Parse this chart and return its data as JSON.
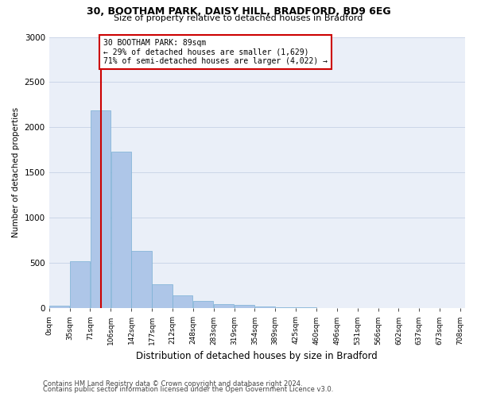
{
  "title1": "30, BOOTHAM PARK, DAISY HILL, BRADFORD, BD9 6EG",
  "title2": "Size of property relative to detached houses in Bradford",
  "xlabel": "Distribution of detached houses by size in Bradford",
  "ylabel": "Number of detached properties",
  "footer1": "Contains HM Land Registry data © Crown copyright and database right 2024.",
  "footer2": "Contains public sector information licensed under the Open Government Licence v3.0.",
  "property_label": "30 BOOTHAM PARK: 89sqm",
  "annotation_line1": "← 29% of detached houses are smaller (1,629)",
  "annotation_line2": "71% of semi-detached houses are larger (4,022) →",
  "bin_labels": [
    "0sqm",
    "35sqm",
    "71sqm",
    "106sqm",
    "142sqm",
    "177sqm",
    "212sqm",
    "248sqm",
    "283sqm",
    "319sqm",
    "354sqm",
    "389sqm",
    "425sqm",
    "460sqm",
    "496sqm",
    "531sqm",
    "566sqm",
    "602sqm",
    "637sqm",
    "673sqm",
    "708sqm"
  ],
  "bar_values": [
    30,
    520,
    2190,
    1730,
    630,
    270,
    140,
    80,
    50,
    40,
    20,
    15,
    10,
    5,
    3,
    2,
    1,
    1,
    0,
    0
  ],
  "bar_color": "#aec6e8",
  "bar_edge_color": "#7ab0d4",
  "vline_x": 89,
  "vline_color": "#cc0000",
  "box_color": "#cc0000",
  "ylim": [
    0,
    3000
  ],
  "yticks": [
    0,
    500,
    1000,
    1500,
    2000,
    2500,
    3000
  ],
  "grid_color": "#ccd6e8",
  "bg_color": "#eaeff8"
}
